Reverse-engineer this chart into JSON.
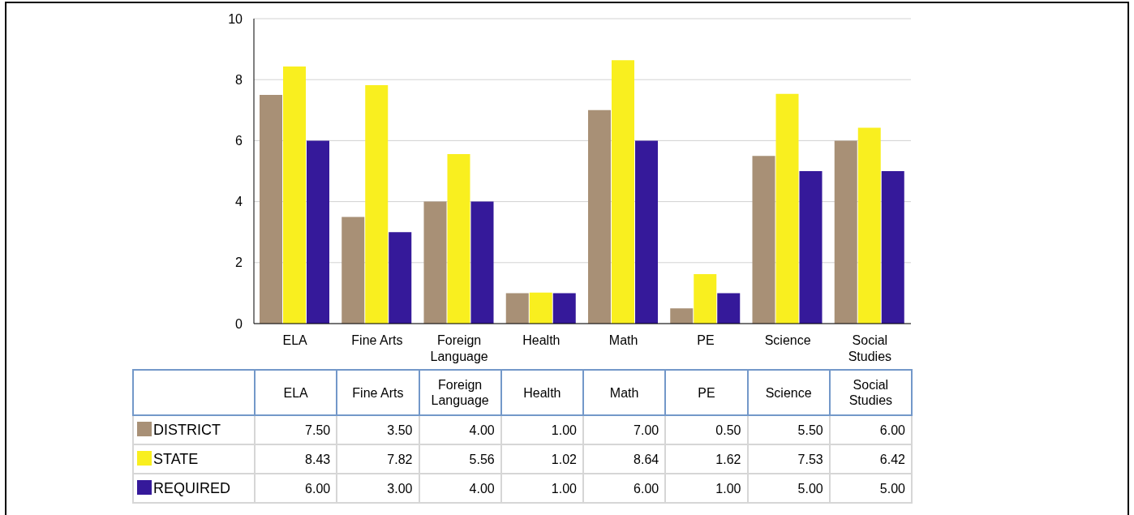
{
  "chart_data": {
    "type": "bar",
    "categories": [
      "ELA",
      "Fine Arts",
      "Foreign Language",
      "Health",
      "Math",
      "PE",
      "Science",
      "Social Studies"
    ],
    "series": [
      {
        "name": "DISTRICT",
        "color": "#a89076",
        "values": [
          7.5,
          3.5,
          4,
          1,
          7,
          0.5,
          5.5,
          6
        ],
        "value_labels": [
          "7.50",
          "3.50",
          "4.00",
          "1.00",
          "7.00",
          "0.50",
          "5.50",
          "6.00"
        ]
      },
      {
        "name": "STATE",
        "color": "#f9ef1f",
        "values": [
          8.43,
          7.82,
          5.56,
          1.02,
          8.64,
          1.62,
          7.53,
          6.42
        ],
        "value_labels": [
          "8.43",
          "7.82",
          "5.56",
          "1.02",
          "8.64",
          "1.62",
          "7.53",
          "6.42"
        ]
      },
      {
        "name": "REQUIRED",
        "color": "#35199a",
        "values": [
          6,
          3,
          4,
          1,
          6,
          1,
          5,
          5
        ],
        "value_labels": [
          "6.00",
          "3.00",
          "4.00",
          "1.00",
          "6.00",
          "1.00",
          "5.00",
          "5.00"
        ]
      }
    ],
    "ylim": [
      0,
      10
    ],
    "yticks": [
      0,
      2,
      4,
      6,
      8,
      10
    ],
    "grid": "y",
    "legend": "bottom"
  }
}
